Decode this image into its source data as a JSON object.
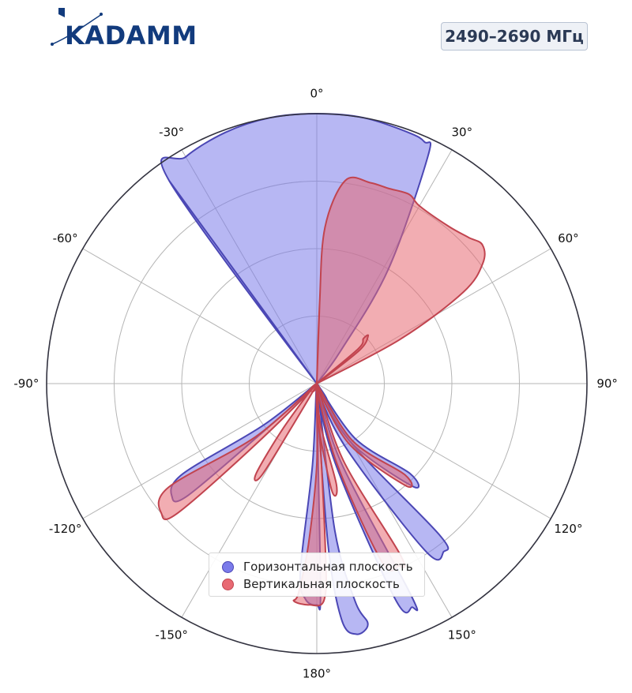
{
  "header": {
    "logo_text": "KADAMM",
    "frequency_badge": "2490–2690 МГц"
  },
  "colors": {
    "horizontal_fill": "#7b7bea",
    "horizontal_stroke": "#4b47b5",
    "vertical_fill": "#e86a73",
    "vertical_stroke": "#c1444f",
    "logo": "#123b7d"
  },
  "chart_data": {
    "type": "polar-area",
    "angle_zero": "top",
    "angle_direction": "clockwise",
    "grid": true,
    "radial_rings": 4,
    "theta_ticks": [
      {
        "deg": 0,
        "label": "0°"
      },
      {
        "deg": 30,
        "label": "30°"
      },
      {
        "deg": 60,
        "label": "60°"
      },
      {
        "deg": 90,
        "label": "90°"
      },
      {
        "deg": 120,
        "label": "120°"
      },
      {
        "deg": 150,
        "label": "150°"
      },
      {
        "deg": 180,
        "label": "180°"
      },
      {
        "deg": -150,
        "label": "-150°"
      },
      {
        "deg": -120,
        "label": "-120°"
      },
      {
        "deg": -90,
        "label": "-90°"
      },
      {
        "deg": -60,
        "label": "-60°"
      },
      {
        "deg": -30,
        "label": "-30°"
      }
    ],
    "legend_position": "bottom-center",
    "series": [
      {
        "name": "Горизонтальная плоскость",
        "lobes": [
          {
            "points": [
              [
                -36,
                0.93
              ],
              [
                -30,
                0.97
              ],
              [
                -20,
                0.99
              ],
              [
                -10,
                1.0
              ],
              [
                0,
                1.0
              ],
              [
                10,
                1.0
              ],
              [
                20,
                0.99
              ],
              [
                24,
                0.98
              ],
              [
                26,
                0.94
              ],
              [
                32,
                0.5
              ],
              [
                36,
                0.15
              ],
              [
                37,
                0.0
              ]
            ]
          },
          {
            "points": [
              [
                -37,
                0.0
              ],
              [
                -36,
                0.93
              ]
            ]
          },
          {
            "points": [
              [
                173,
                0.55
              ],
              [
                170,
                0.82
              ],
              [
                168,
                0.91
              ],
              [
                171,
                0.94
              ],
              [
                174,
                0.88
              ],
              [
                176,
                0.6
              ]
            ]
          },
          {
            "points": [
              [
                179,
                0.3
              ],
              [
                179,
                0.79
              ],
              [
                180,
                0.82
              ],
              [
                183,
                0.8
              ],
              [
                185,
                0.7
              ],
              [
                183,
                0.3
              ]
            ]
          },
          {
            "points": [
              [
                163,
                0.3
              ],
              [
                156,
                0.86
              ],
              [
                157,
                0.9
              ],
              [
                160,
                0.85
              ],
              [
                167,
                0.3
              ]
            ]
          },
          {
            "points": [
              [
                150,
                0.25
              ],
              [
                141,
                0.72
              ],
              [
                143,
                0.78
              ],
              [
                147,
                0.74
              ],
              [
                156,
                0.25
              ]
            ]
          },
          {
            "points": [
              [
                145,
                0.25
              ],
              [
                134,
                0.48
              ],
              [
                137,
                0.52
              ],
              [
                150,
                0.25
              ]
            ]
          },
          {
            "points": [
              [
                -128,
                0.25
              ],
              [
                -124,
                0.6
              ],
              [
                -128,
                0.68
              ],
              [
                -131,
                0.63
              ],
              [
                -132,
                0.25
              ]
            ]
          }
        ]
      },
      {
        "name": "Вертикальная плоскость",
        "lobes": [
          {
            "points": [
              [
                2,
                0.3
              ],
              [
                3,
                0.58
              ],
              [
                8,
                0.76
              ],
              [
                15,
                0.77
              ],
              [
                20,
                0.77
              ],
              [
                26,
                0.78
              ],
              [
                30,
                0.76
              ],
              [
                40,
                0.76
              ],
              [
                46,
                0.78
              ],
              [
                50,
                0.8
              ],
              [
                54,
                0.76
              ],
              [
                58,
                0.64
              ],
              [
                62,
                0.35
              ],
              [
                63,
                0.0
              ]
            ]
          },
          {
            "points": [
              [
                2,
                0.0
              ],
              [
                2,
                0.3
              ]
            ]
          },
          {
            "points": [
              [
                50,
                0.2
              ],
              [
                46,
                0.24
              ],
              [
                47,
                0.26
              ],
              [
                52,
                0.2
              ]
            ]
          },
          {
            "points": [
              [
                180,
                0.3
              ],
              [
                183,
                0.6
              ],
              [
                185,
                0.78
              ],
              [
                186,
                0.81
              ],
              [
                182,
                0.82
              ],
              [
                178,
                0.8
              ],
              [
                177,
                0.6
              ]
            ]
          },
          {
            "points": [
              [
                161,
                0.3
              ],
              [
                154,
                0.71
              ],
              [
                156,
                0.74
              ],
              [
                160,
                0.7
              ],
              [
                166,
                0.3
              ]
            ]
          },
          {
            "points": [
              [
                148,
                0.25
              ],
              [
                136,
                0.47
              ],
              [
                139,
                0.5
              ],
              [
                152,
                0.25
              ]
            ]
          },
          {
            "points": [
              [
                175,
                0.15
              ],
              [
                169,
                0.38
              ],
              [
                172,
                0.4
              ],
              [
                178,
                0.15
              ]
            ]
          },
          {
            "points": [
              [
                -143,
                0.2
              ],
              [
                -146,
                0.4
              ],
              [
                -149,
                0.4
              ],
              [
                -150,
                0.2
              ]
            ]
          },
          {
            "points": [
              [
                -131,
                0.3
              ],
              [
                -125,
                0.67
              ],
              [
                -130,
                0.75
              ],
              [
                -133,
                0.7
              ],
              [
                -135,
                0.3
              ]
            ]
          }
        ]
      }
    ]
  }
}
